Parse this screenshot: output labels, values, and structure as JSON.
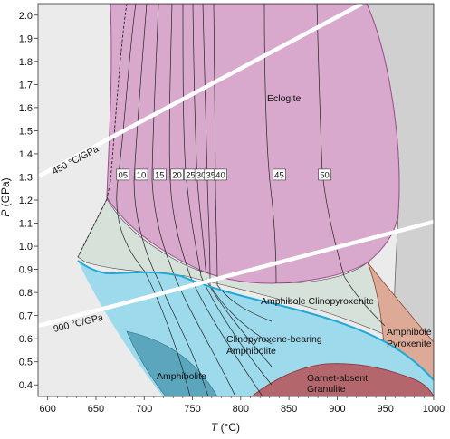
{
  "axes": {
    "x_label_var": "T",
    "x_label_unit": " (°C)",
    "y_label_var": "P",
    "y_label_unit": " (GPa)",
    "x_ticks": [
      "600",
      "650",
      "700",
      "750",
      "800",
      "850",
      "900",
      "950",
      "1000"
    ],
    "y_ticks": [
      "0.4",
      "0.5",
      "0.6",
      "0.7",
      "0.8",
      "0.9",
      "1.0",
      "1.1",
      "1.2",
      "1.3",
      "1.4",
      "1.5",
      "1.6",
      "1.7",
      "1.8",
      "1.9",
      "2.0"
    ],
    "x_range": [
      590,
      1000
    ],
    "y_range": [
      0.35,
      2.05
    ]
  },
  "fields": {
    "eclogite": "Eclogite",
    "amphibole_clinopyroxenite": "Amphibole Clinopyroxenite",
    "cpx_amphibolite_1": "Clinopyroxene-bearing",
    "cpx_amphibolite_2": "Amphibolite",
    "amphibolite": "Amphibolite",
    "amphibole_pyroxenite_1": "Amphibole",
    "amphibole_pyroxenite_2": "Pyroxenite",
    "garnet_absent_1": "Garnet-absent",
    "garnet_absent_2": "Granulite"
  },
  "gradients": {
    "g450": "450 °C/GPa",
    "g900": "900 °C/GPa"
  },
  "isopleths": [
    {
      "label": "05",
      "x": 678,
      "y": 1.31
    },
    {
      "label": "10",
      "x": 697,
      "y": 1.31
    },
    {
      "label": "15",
      "x": 716,
      "y": 1.31
    },
    {
      "label": "20",
      "x": 734,
      "y": 1.31
    },
    {
      "label": "25",
      "x": 748,
      "y": 1.31
    },
    {
      "label": "30",
      "x": 759,
      "y": 1.31
    },
    {
      "label": "35",
      "x": 769,
      "y": 1.31
    },
    {
      "label": "40",
      "x": 779,
      "y": 1.31
    },
    {
      "label": "45",
      "x": 840,
      "y": 1.31
    },
    {
      "label": "50",
      "x": 887,
      "y": 1.31
    }
  ],
  "colors": {
    "background": "#ebebeb",
    "eclogite": "#d8a9cc",
    "amphibole_clinopyroxenite": "#d6e1d9",
    "cpx_amphibolite": "#9ddaec",
    "amphibolite": "#5ba6bd",
    "amphibole_pyroxenite": "#dcaa96",
    "garnet_absent_granulite": "#b3676c",
    "right_dome": "#d0d0d0",
    "blue_boundary": "#1fa9d6",
    "eclogite_boundary": "#9c4f8c"
  }
}
